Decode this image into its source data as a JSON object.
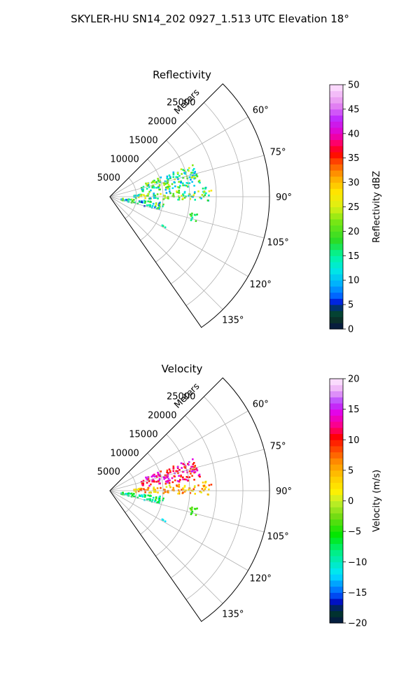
{
  "figure": {
    "suptitle": "SKYLER-HU  SN14_202  0927_1.513 UTC Elevation 18°"
  },
  "chart_data": [
    {
      "type": "polar-sector",
      "title": "Reflectivity",
      "radial_label": "Meters",
      "radial_ticks": [
        5000,
        10000,
        15000,
        20000,
        25000
      ],
      "radial_tick_labels": [
        "5000",
        "10000",
        "15000",
        "20000",
        "25000"
      ],
      "rmax": 30000,
      "azimuth_ticks": [
        60,
        75,
        90,
        105,
        120,
        135
      ],
      "azimuth_tick_labels": [
        "60°",
        "75°",
        "90°",
        "105°",
        "120°",
        "135°"
      ],
      "azimuth_range": [
        45,
        145
      ],
      "grid": true,
      "colorbar": {
        "label": "Reflectivity dBZ",
        "vmin": 0,
        "vmax": 50,
        "ticks": [
          0,
          5,
          10,
          15,
          20,
          25,
          30,
          35,
          40,
          45,
          50
        ],
        "tick_labels": [
          "0",
          "5",
          "10",
          "15",
          "20",
          "25",
          "30",
          "35",
          "40",
          "45",
          "50"
        ]
      },
      "echo_regions": [
        {
          "az": [
            68,
            82
          ],
          "r": [
            6000,
            17000
          ],
          "value_range": [
            8,
            26
          ]
        },
        {
          "az": [
            84,
            92
          ],
          "r": [
            4000,
            19000
          ],
          "value_range": [
            8,
            28
          ]
        },
        {
          "az": [
            95,
            104
          ],
          "r": [
            2000,
            10000
          ],
          "value_range": [
            5,
            25
          ]
        },
        {
          "az": [
            100,
            106
          ],
          "r": [
            15000,
            17000
          ],
          "value_range": [
            12,
            22
          ]
        },
        {
          "az": [
            118,
            121
          ],
          "r": [
            11000,
            12500
          ],
          "value_range": [
            12,
            18
          ]
        }
      ]
    },
    {
      "type": "polar-sector",
      "title": "Velocity",
      "radial_label": "Meters",
      "radial_ticks": [
        5000,
        10000,
        15000,
        20000,
        25000
      ],
      "radial_tick_labels": [
        "5000",
        "10000",
        "15000",
        "20000",
        "25000"
      ],
      "rmax": 30000,
      "azimuth_ticks": [
        60,
        75,
        90,
        105,
        120,
        135
      ],
      "azimuth_tick_labels": [
        "60°",
        "75°",
        "90°",
        "105°",
        "120°",
        "135°"
      ],
      "azimuth_range": [
        45,
        145
      ],
      "grid": true,
      "colorbar": {
        "label": "Velocity (m/s)",
        "vmin": -20,
        "vmax": 20,
        "ticks": [
          -20,
          -15,
          -10,
          -5,
          0,
          5,
          10,
          15,
          20
        ],
        "tick_labels": [
          "−20",
          "−15",
          "−10",
          "−5",
          "0",
          "5",
          "10",
          "15",
          "20"
        ]
      },
      "echo_regions": [
        {
          "az": [
            68,
            82
          ],
          "r": [
            6000,
            17000
          ],
          "value_range": [
            8,
            16
          ]
        },
        {
          "az": [
            84,
            92
          ],
          "r": [
            4000,
            19000
          ],
          "value_range": [
            0,
            9
          ]
        },
        {
          "az": [
            95,
            104
          ],
          "r": [
            2000,
            10000
          ],
          "value_range": [
            -12,
            -4
          ]
        },
        {
          "az": [
            100,
            106
          ],
          "r": [
            15000,
            17000
          ],
          "value_range": [
            -6,
            -2
          ]
        },
        {
          "az": [
            118,
            121
          ],
          "r": [
            11000,
            12500
          ],
          "value_range": [
            -13,
            -10
          ]
        }
      ]
    }
  ]
}
